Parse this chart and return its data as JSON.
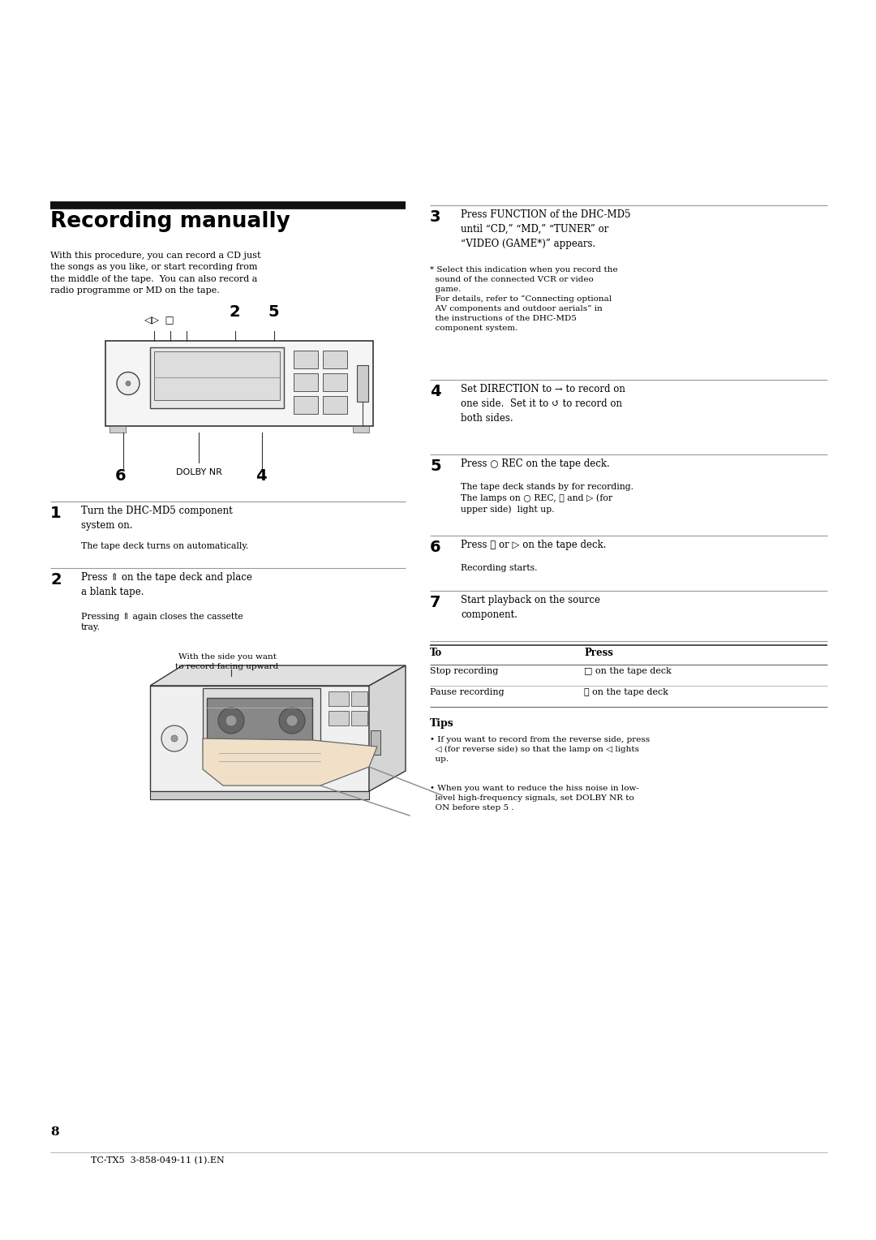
{
  "bg_color": "#ffffff",
  "page_width": 10.8,
  "page_height": 15.28,
  "font_color": "#000000",
  "title": "Recording manually",
  "intro_text": "With this procedure, you can record a CD just\nthe songs as you like, or start recording from\nthe middle of the tape.  You can also record a\nradio programme or MD on the tape.",
  "step1_num": "1",
  "step1_text": "Turn the DHC-MD5 component\nsystem on.",
  "step1_sub": "The tape deck turns on automatically.",
  "step2_num": "2",
  "step2_text": "Press ⇑ on the tape deck and place\na blank tape.",
  "step2_sub": "Pressing ⇑ again closes the cassette\ntray.",
  "step3_num": "3",
  "step3_text": "Press FUNCTION of the DHC-MD5\nuntil “CD,” “MD,” “TUNER” or\n“VIDEO (GAME*)” appears.",
  "step3_note_star": "* Select this indication when you record the\n  sound of the connected VCR or video\n  game.\n  For details, refer to “Connecting optional\n  AV components and outdoor aerials” in\n  the instructions of the DHC-MD5\n  component system.",
  "step4_num": "4",
  "step4_text": "Set DIRECTION to → to record on\none side.  Set it to ↺ to record on\nboth sides.",
  "step5_num": "5",
  "step5_text": "Press ○ REC on the tape deck.",
  "step5_sub": "The tape deck stands by for recording.\nThe lamps on ○ REC, ⏯ and ▷ (for\nupper side)  light up.",
  "step6_num": "6",
  "step6_text": "Press ⏯ or ▷ on the tape deck.",
  "step6_sub": "Recording starts.",
  "step7_num": "7",
  "step7_text": "Start playback on the source\ncomponent.",
  "table_header_to": "To",
  "table_header_press": "Press",
  "table_row1_to": "Stop recording",
  "table_row1_press": "□ on the tape deck",
  "table_row2_to": "Pause recording",
  "table_row2_press": "⏯ on the tape deck",
  "tips_title": "Tips",
  "tip1": "• If you want to record from the reverse side, press\n  ◁ (for reverse side) so that the lamp on ◁ lights\n  up.",
  "tip2": "• When you want to reduce the hiss noise in low-\n  level high-frequency signals, set DOLBY NR to\n  ON before step 5 .",
  "image_note": "With the side you want\nto record facing upward",
  "diagram_label_2": "2",
  "diagram_label_5": "5",
  "diagram_label_6": "6",
  "diagram_label_dolby": "DOLBY NR",
  "diagram_label_4": "4",
  "page_num": "8",
  "footer": "TC-TX5  3-858-049-11 (1).EN"
}
